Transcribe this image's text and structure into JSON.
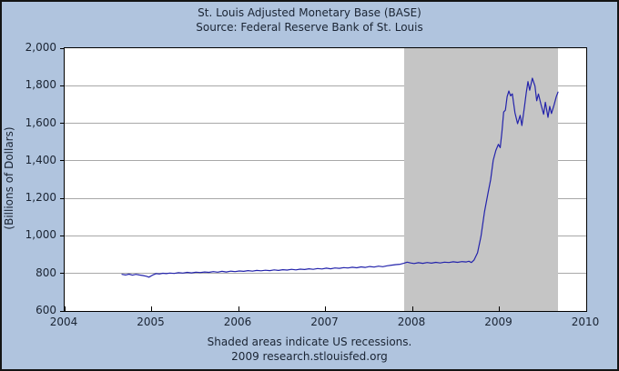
{
  "title": {
    "line1": "St. Louis Adjusted Monetary Base (BASE)",
    "line2": "Source: Federal Reserve Bank of St. Louis"
  },
  "y_axis_title": "(Billions of Dollars)",
  "footer": {
    "line1": "Shaded areas indicate US recessions.",
    "line2": "2009 research.stlouisfed.org"
  },
  "colors": {
    "background": "#b0c4de",
    "plot_background": "#ffffff",
    "plot_border": "#000000",
    "gridline": "#a8a8a8",
    "recession_band": "#c5c5c5",
    "series_line": "#2323ab",
    "text": "#1a2433"
  },
  "chart_data": {
    "type": "line",
    "title": "St. Louis Adjusted Monetary Base (BASE)",
    "subtitle": "Source: Federal Reserve Bank of St. Louis",
    "ylabel": "(Billions of Dollars)",
    "xlabel": "",
    "grid": "horizontal",
    "x_range": [
      2004,
      2010
    ],
    "y_range": [
      600,
      2000
    ],
    "x_ticks": {
      "values": [
        2004,
        2005,
        2006,
        2007,
        2008,
        2009,
        2010
      ],
      "labels": [
        "2004",
        "2005",
        "2006",
        "2007",
        "2008",
        "2009",
        "2010"
      ]
    },
    "y_ticks": {
      "values": [
        2000,
        1800,
        1600,
        1400,
        1200,
        1000,
        800,
        600
      ],
      "labels": [
        "2,000",
        "1,800",
        "1,600",
        "1,400",
        "1,200",
        "1,000",
        "800",
        "600"
      ]
    },
    "shaded_regions": [
      {
        "label": "US recession",
        "start": 2007.905,
        "end": 2009.675
      }
    ],
    "series": [
      {
        "name": "St. Louis Adjusted Monetary Base",
        "color": "#2323ab",
        "points": [
          [
            2004.66,
            795
          ],
          [
            2004.7,
            792
          ],
          [
            2004.74,
            796
          ],
          [
            2004.78,
            791
          ],
          [
            2004.82,
            795
          ],
          [
            2004.86,
            792
          ],
          [
            2004.9,
            789
          ],
          [
            2004.94,
            785
          ],
          [
            2004.97,
            780
          ],
          [
            2005.01,
            791
          ],
          [
            2005.05,
            799
          ],
          [
            2005.09,
            797
          ],
          [
            2005.13,
            801
          ],
          [
            2005.17,
            799
          ],
          [
            2005.21,
            802
          ],
          [
            2005.26,
            800
          ],
          [
            2005.31,
            804
          ],
          [
            2005.36,
            802
          ],
          [
            2005.41,
            806
          ],
          [
            2005.46,
            803
          ],
          [
            2005.51,
            807
          ],
          [
            2005.56,
            805
          ],
          [
            2005.61,
            808
          ],
          [
            2005.66,
            806
          ],
          [
            2005.71,
            810
          ],
          [
            2005.76,
            807
          ],
          [
            2005.81,
            811
          ],
          [
            2005.86,
            808
          ],
          [
            2005.91,
            812
          ],
          [
            2005.96,
            810
          ],
          [
            2006.01,
            813
          ],
          [
            2006.06,
            811
          ],
          [
            2006.11,
            815
          ],
          [
            2006.16,
            812
          ],
          [
            2006.21,
            816
          ],
          [
            2006.26,
            814
          ],
          [
            2006.31,
            817
          ],
          [
            2006.36,
            815
          ],
          [
            2006.41,
            819
          ],
          [
            2006.46,
            816
          ],
          [
            2006.51,
            820
          ],
          [
            2006.56,
            818
          ],
          [
            2006.61,
            822
          ],
          [
            2006.66,
            819
          ],
          [
            2006.71,
            823
          ],
          [
            2006.76,
            821
          ],
          [
            2006.81,
            825
          ],
          [
            2006.86,
            822
          ],
          [
            2006.91,
            826
          ],
          [
            2006.96,
            824
          ],
          [
            2007.01,
            828
          ],
          [
            2007.06,
            825
          ],
          [
            2007.11,
            829
          ],
          [
            2007.16,
            827
          ],
          [
            2007.21,
            831
          ],
          [
            2007.26,
            829
          ],
          [
            2007.31,
            833
          ],
          [
            2007.36,
            830
          ],
          [
            2007.41,
            835
          ],
          [
            2007.46,
            832
          ],
          [
            2007.51,
            837
          ],
          [
            2007.56,
            834
          ],
          [
            2007.61,
            839
          ],
          [
            2007.66,
            836
          ],
          [
            2007.71,
            841
          ],
          [
            2007.76,
            844
          ],
          [
            2007.81,
            847
          ],
          [
            2007.86,
            849
          ],
          [
            2007.9,
            854
          ],
          [
            2007.94,
            860
          ],
          [
            2007.98,
            856
          ],
          [
            2008.02,
            853
          ],
          [
            2008.07,
            857
          ],
          [
            2008.12,
            854
          ],
          [
            2008.17,
            858
          ],
          [
            2008.22,
            855
          ],
          [
            2008.27,
            859
          ],
          [
            2008.32,
            856
          ],
          [
            2008.37,
            860
          ],
          [
            2008.42,
            858
          ],
          [
            2008.47,
            862
          ],
          [
            2008.52,
            859
          ],
          [
            2008.57,
            863
          ],
          [
            2008.62,
            861
          ],
          [
            2008.65,
            865
          ],
          [
            2008.68,
            858
          ],
          [
            2008.71,
            872
          ],
          [
            2008.75,
            910
          ],
          [
            2008.79,
            998
          ],
          [
            2008.83,
            1130
          ],
          [
            2008.87,
            1228
          ],
          [
            2008.9,
            1300
          ],
          [
            2008.93,
            1402
          ],
          [
            2008.96,
            1455
          ],
          [
            2008.99,
            1488
          ],
          [
            2009.01,
            1470
          ],
          [
            2009.03,
            1555
          ],
          [
            2009.05,
            1660
          ],
          [
            2009.07,
            1670
          ],
          [
            2009.09,
            1742
          ],
          [
            2009.11,
            1772
          ],
          [
            2009.13,
            1746
          ],
          [
            2009.15,
            1757
          ],
          [
            2009.18,
            1656
          ],
          [
            2009.21,
            1598
          ],
          [
            2009.24,
            1642
          ],
          [
            2009.26,
            1588
          ],
          [
            2009.29,
            1690
          ],
          [
            2009.31,
            1762
          ],
          [
            2009.33,
            1822
          ],
          [
            2009.35,
            1776
          ],
          [
            2009.38,
            1840
          ],
          [
            2009.41,
            1798
          ],
          [
            2009.43,
            1720
          ],
          [
            2009.45,
            1756
          ],
          [
            2009.48,
            1700
          ],
          [
            2009.51,
            1648
          ],
          [
            2009.53,
            1712
          ],
          [
            2009.56,
            1632
          ],
          [
            2009.58,
            1690
          ],
          [
            2009.6,
            1652
          ],
          [
            2009.63,
            1698
          ],
          [
            2009.655,
            1742
          ],
          [
            2009.675,
            1766
          ]
        ]
      }
    ]
  }
}
